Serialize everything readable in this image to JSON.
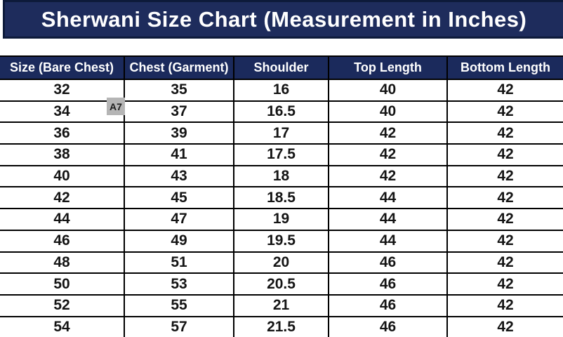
{
  "header": {
    "title": "Sherwani Size Chart (Measurement in Inches)"
  },
  "overlay": {
    "cell_ref": "A7"
  },
  "table": {
    "headers": [
      "Size (Bare Chest)",
      "Chest (Garment)",
      "Shoulder",
      "Top Length",
      "Bottom Length"
    ],
    "rows": [
      [
        "32",
        "35",
        "16",
        "40",
        "42"
      ],
      [
        "34",
        "37",
        "16.5",
        "40",
        "42"
      ],
      [
        "36",
        "39",
        "17",
        "42",
        "42"
      ],
      [
        "38",
        "41",
        "17.5",
        "42",
        "42"
      ],
      [
        "40",
        "43",
        "18",
        "42",
        "42"
      ],
      [
        "42",
        "45",
        "18.5",
        "44",
        "42"
      ],
      [
        "44",
        "47",
        "19",
        "44",
        "42"
      ],
      [
        "46",
        "49",
        "19.5",
        "44",
        "42"
      ],
      [
        "48",
        "51",
        "20",
        "46",
        "42"
      ],
      [
        "50",
        "53",
        "20.5",
        "46",
        "42"
      ],
      [
        "52",
        "55",
        "21",
        "46",
        "42"
      ],
      [
        "54",
        "57",
        "21.5",
        "46",
        "42"
      ]
    ]
  },
  "colors": {
    "banner_navy": "#1e2c5c",
    "banner_outline": "#0d1a3a",
    "header_navy": "#1b2a5c",
    "table_border": "#000000",
    "cell_ref_gray": "#b5b5b5",
    "text_white": "#ffffff",
    "text_black": "#141414"
  }
}
